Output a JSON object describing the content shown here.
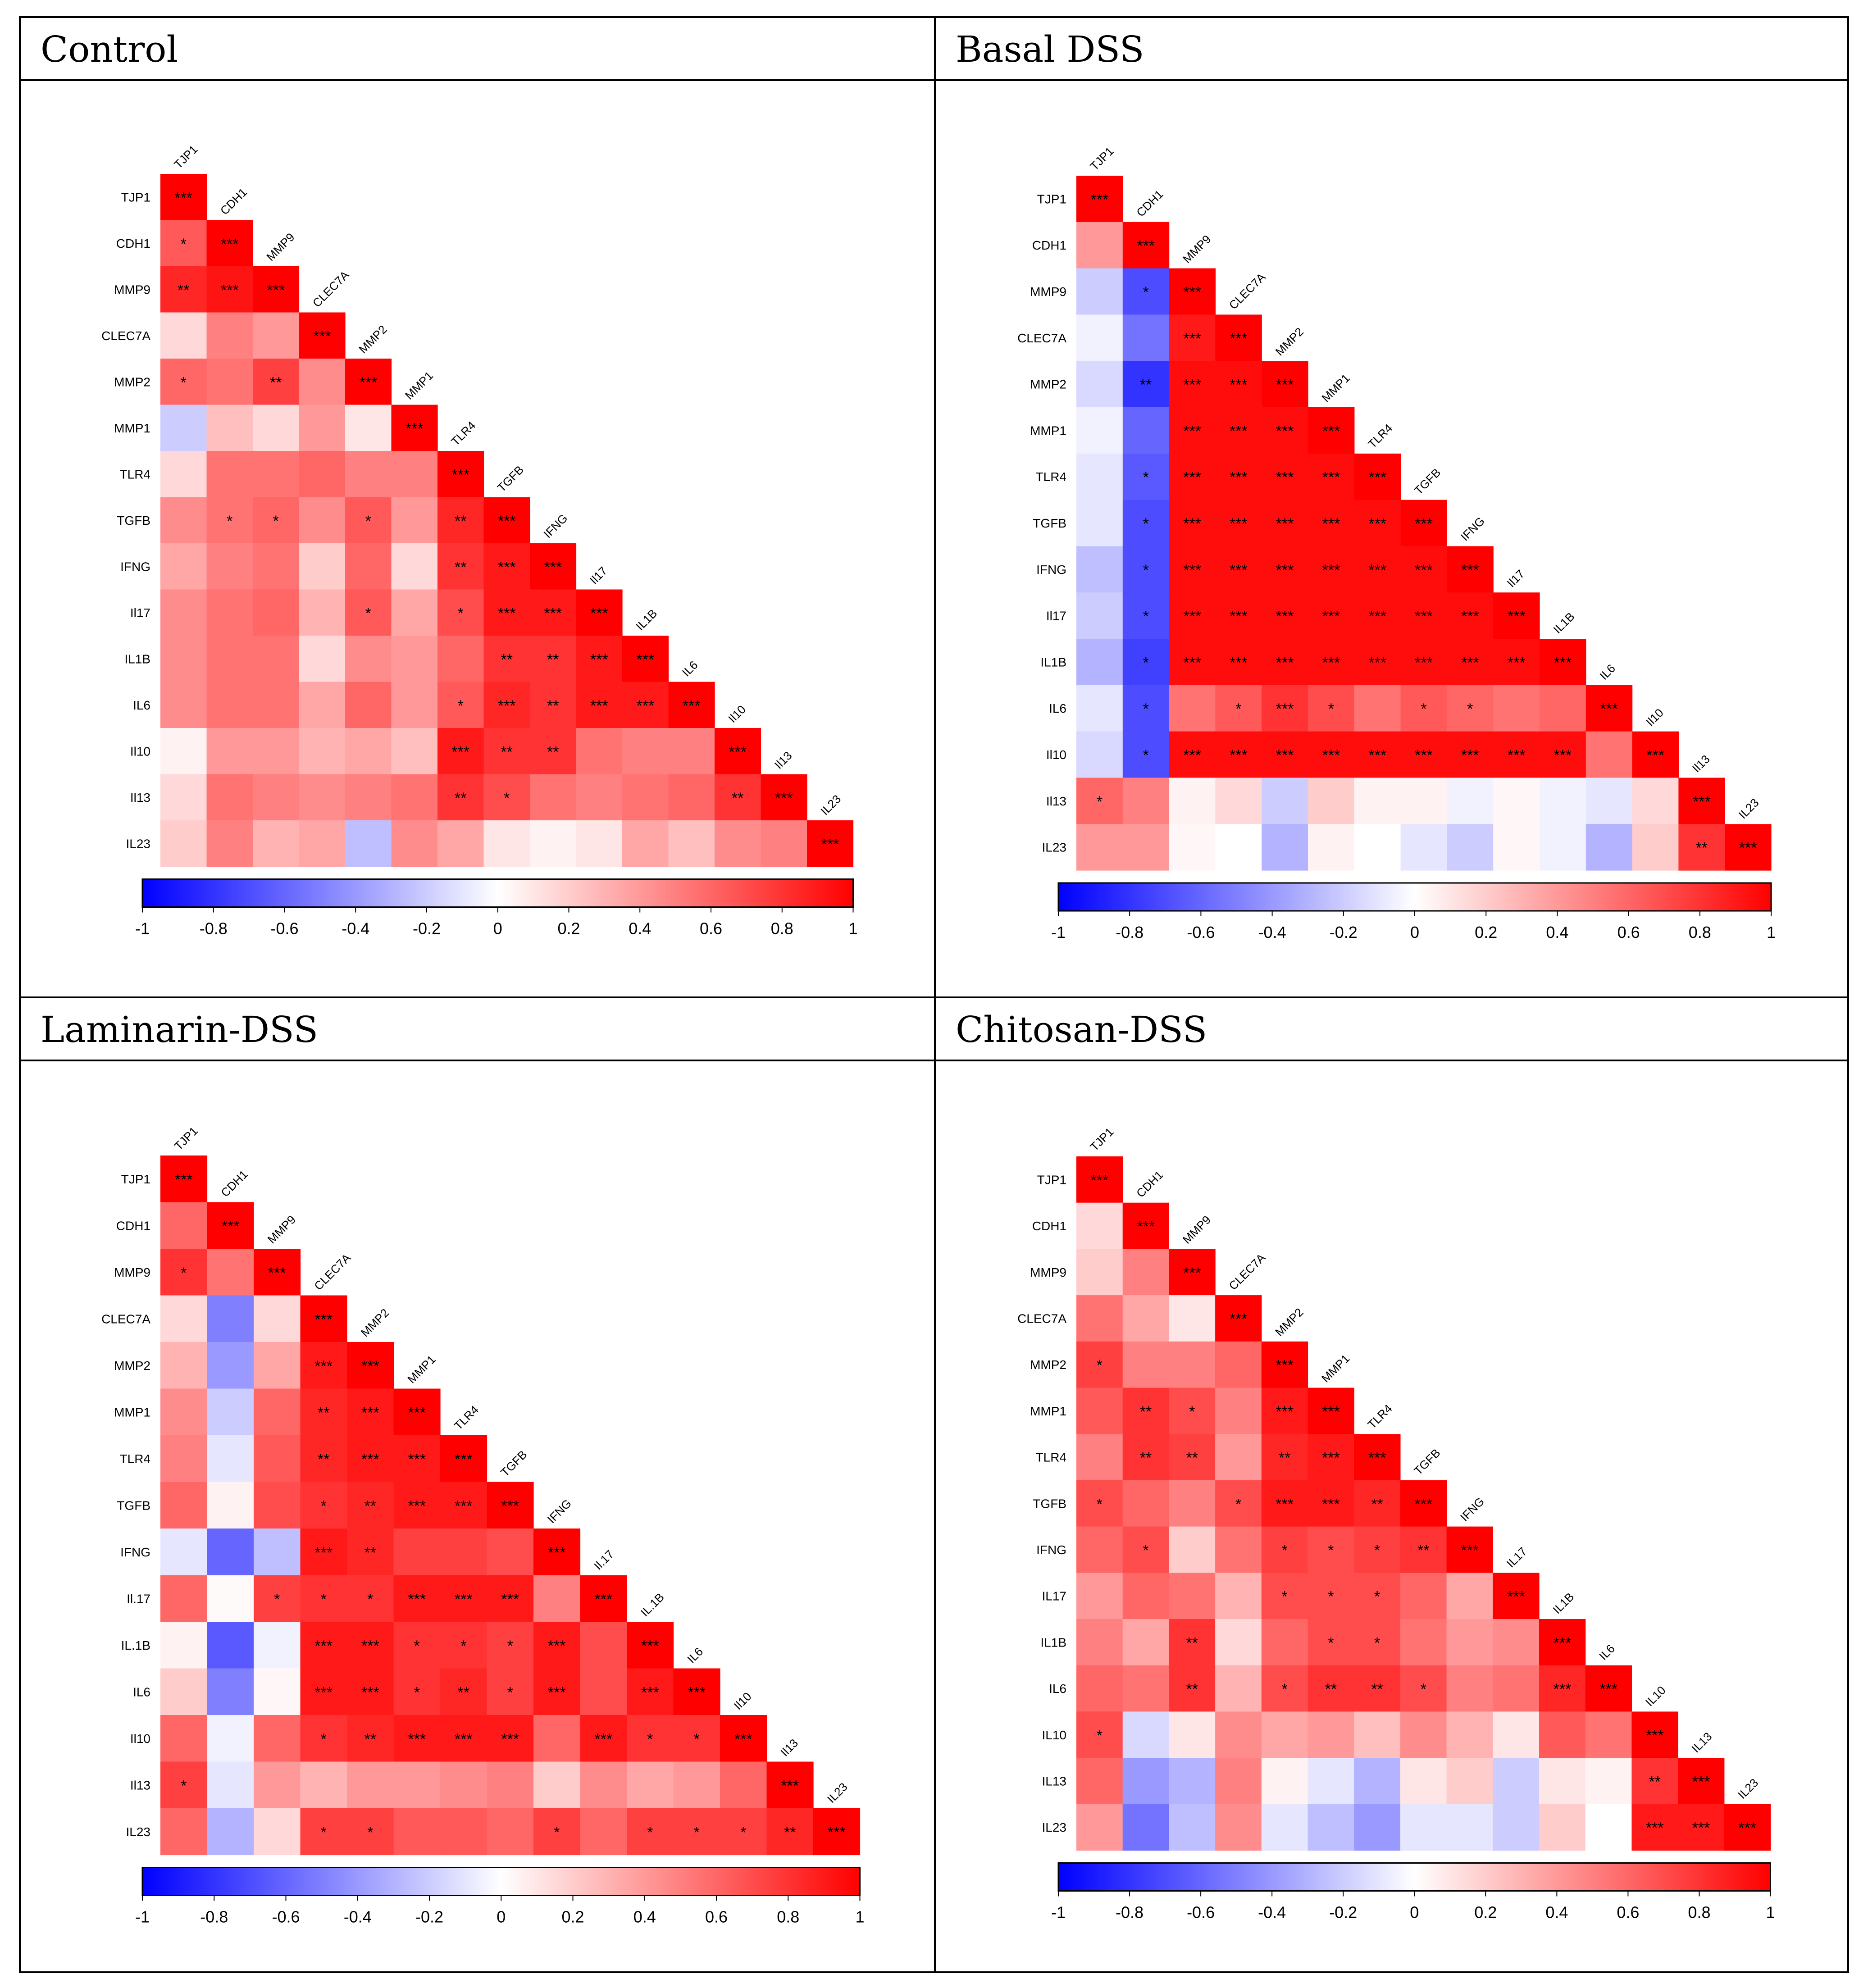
{
  "figure": {
    "panels": [
      {
        "id": "control",
        "title": "Control"
      },
      {
        "id": "basal",
        "title": "Basal DSS"
      },
      {
        "id": "laminarin",
        "title": "Laminarin-DSS"
      },
      {
        "id": "chitosan",
        "title": "Chitosan-DSS"
      }
    ]
  },
  "chart_data": [
    {
      "type": "heatmap",
      "title": "Control",
      "labels": [
        "TJP1",
        "CDH1",
        "MMP9",
        "CLEC7A",
        "MMP2",
        "MMP1",
        "TLR4",
        "TGFB",
        "IFNG",
        "Il17",
        "IL1B",
        "IL6",
        "Il10",
        "Il13",
        "IL23"
      ],
      "colorbar_ticks": [
        "-1",
        "-0.8",
        "-0.6",
        "-0.4",
        "-0.2",
        "0",
        "0.2",
        "0.4",
        "0.6",
        "0.8",
        "1"
      ],
      "vlim": [
        -1,
        1
      ],
      "values": [
        [
          1.0
        ],
        [
          0.65,
          1.0
        ],
        [
          0.85,
          0.92,
          1.0
        ],
        [
          0.15,
          0.5,
          0.4,
          1.0
        ],
        [
          0.6,
          0.55,
          0.75,
          0.45,
          1.0
        ],
        [
          -0.2,
          0.25,
          0.15,
          0.4,
          0.1,
          1.0
        ],
        [
          0.15,
          0.55,
          0.55,
          0.6,
          0.5,
          0.5,
          1.0
        ],
        [
          0.45,
          0.55,
          0.6,
          0.45,
          0.65,
          0.4,
          0.85,
          1.0
        ],
        [
          0.35,
          0.5,
          0.55,
          0.2,
          0.6,
          0.15,
          0.8,
          0.9,
          1.0
        ],
        [
          0.45,
          0.55,
          0.6,
          0.3,
          0.65,
          0.35,
          0.7,
          0.9,
          0.9,
          1.0
        ],
        [
          0.45,
          0.55,
          0.55,
          0.15,
          0.45,
          0.4,
          0.6,
          0.8,
          0.8,
          0.9,
          1.0
        ],
        [
          0.45,
          0.55,
          0.55,
          0.35,
          0.6,
          0.4,
          0.65,
          0.85,
          0.8,
          0.9,
          0.9,
          1.0
        ],
        [
          0.05,
          0.4,
          0.4,
          0.3,
          0.35,
          0.25,
          0.9,
          0.8,
          0.8,
          0.55,
          0.5,
          0.5,
          1.0
        ],
        [
          0.15,
          0.55,
          0.5,
          0.45,
          0.5,
          0.55,
          0.8,
          0.7,
          0.55,
          0.5,
          0.55,
          0.6,
          0.8,
          1.0
        ],
        [
          0.2,
          0.5,
          0.3,
          0.35,
          -0.25,
          0.45,
          0.35,
          0.1,
          0.05,
          0.1,
          0.35,
          0.25,
          0.45,
          0.5,
          1.0
        ]
      ],
      "stars": [
        [
          "***"
        ],
        [
          "*",
          "***"
        ],
        [
          "**",
          "***",
          "***"
        ],
        [
          "",
          "",
          "",
          "***"
        ],
        [
          "*",
          "",
          "**",
          "",
          "***"
        ],
        [
          "",
          "",
          "",
          "",
          "",
          "***"
        ],
        [
          "",
          "",
          "",
          "",
          "",
          "",
          "***"
        ],
        [
          "",
          "*",
          "*",
          "",
          "*",
          "",
          "**",
          "***"
        ],
        [
          "",
          "",
          "",
          "",
          "",
          "",
          "**",
          "***",
          "***"
        ],
        [
          "",
          "",
          "",
          "",
          "*",
          "",
          "*",
          "***",
          "***",
          "***"
        ],
        [
          "",
          "",
          "",
          "",
          "",
          "",
          "",
          "**",
          "**",
          "***",
          "***"
        ],
        [
          "",
          "",
          "",
          "",
          "",
          "",
          "*",
          "***",
          "**",
          "***",
          "***",
          "***"
        ],
        [
          "",
          "",
          "",
          "",
          "",
          "",
          "***",
          "**",
          "**",
          "",
          "",
          "",
          "***"
        ],
        [
          "",
          "",
          "",
          "",
          "",
          "",
          "**",
          "*",
          "",
          "",
          "",
          "",
          "**",
          "***"
        ],
        [
          "",
          "",
          "",
          "",
          "",
          "",
          "",
          "",
          "",
          "",
          "",
          "",
          "",
          "",
          "***"
        ]
      ]
    },
    {
      "type": "heatmap",
      "title": "Basal DSS",
      "labels": [
        "TJP1",
        "CDH1",
        "MMP9",
        "CLEC7A",
        "MMP2",
        "MMP1",
        "TLR4",
        "TGFB",
        "IFNG",
        "Il17",
        "IL1B",
        "IL6",
        "Il10",
        "Il13",
        "IL23"
      ],
      "colorbar_ticks": [
        "-1",
        "-0.8",
        "-0.6",
        "-0.4",
        "-0.2",
        "0",
        "0.2",
        "0.4",
        "0.6",
        "0.8",
        "1"
      ],
      "vlim": [
        -1,
        1
      ],
      "values": [
        [
          1.0
        ],
        [
          0.4,
          1.0
        ],
        [
          -0.2,
          -0.7,
          1.0
        ],
        [
          -0.05,
          -0.55,
          0.9,
          1.0
        ],
        [
          -0.15,
          -0.8,
          0.95,
          0.95,
          1.0
        ],
        [
          -0.05,
          -0.6,
          0.95,
          0.95,
          0.95,
          1.0
        ],
        [
          -0.1,
          -0.65,
          0.95,
          0.95,
          0.95,
          0.95,
          1.0
        ],
        [
          -0.1,
          -0.7,
          0.95,
          0.95,
          0.95,
          0.95,
          0.95,
          1.0
        ],
        [
          -0.25,
          -0.7,
          0.95,
          0.95,
          0.95,
          0.95,
          0.95,
          0.95,
          1.0
        ],
        [
          -0.2,
          -0.7,
          0.95,
          0.95,
          0.95,
          0.95,
          0.95,
          0.95,
          0.95,
          1.0
        ],
        [
          -0.3,
          -0.75,
          0.95,
          0.95,
          0.95,
          0.95,
          0.95,
          0.95,
          0.95,
          0.95,
          1.0
        ],
        [
          -0.1,
          -0.7,
          0.55,
          0.65,
          0.8,
          0.7,
          0.55,
          0.65,
          0.6,
          0.55,
          0.6,
          1.0
        ],
        [
          -0.15,
          -0.7,
          0.95,
          0.95,
          0.95,
          0.95,
          0.95,
          0.95,
          0.95,
          0.95,
          0.95,
          0.55,
          1.0
        ],
        [
          0.6,
          0.5,
          0.05,
          0.15,
          -0.2,
          0.2,
          0.05,
          0.05,
          -0.05,
          0.03,
          -0.05,
          -0.1,
          0.15,
          1.0
        ],
        [
          0.4,
          0.4,
          0.03,
          0.0,
          -0.3,
          0.05,
          0.0,
          -0.1,
          -0.2,
          0.03,
          -0.05,
          -0.3,
          0.2,
          0.8,
          1.0
        ]
      ],
      "stars": [
        [
          "***"
        ],
        [
          "",
          "***"
        ],
        [
          "",
          "*",
          "***"
        ],
        [
          "",
          "",
          "***",
          "***"
        ],
        [
          "",
          "**",
          "***",
          "***",
          "***"
        ],
        [
          "",
          "",
          "***",
          "***",
          "***",
          "***"
        ],
        [
          "",
          "*",
          "***",
          "***",
          "***",
          "***",
          "***"
        ],
        [
          "",
          "*",
          "***",
          "***",
          "***",
          "***",
          "***",
          "***"
        ],
        [
          "",
          "*",
          "***",
          "***",
          "***",
          "***",
          "***",
          "***",
          "***"
        ],
        [
          "",
          "*",
          "***",
          "***",
          "***",
          "***",
          "***",
          "***",
          "***",
          "***"
        ],
        [
          "",
          "*",
          "***",
          "***",
          "***",
          "***",
          "***",
          "***",
          "***",
          "***",
          "***"
        ],
        [
          "",
          "*",
          "",
          "*",
          "***",
          "*",
          "",
          "*",
          "*",
          "",
          "",
          "***"
        ],
        [
          "",
          "*",
          "***",
          "***",
          "***",
          "***",
          "***",
          "***",
          "***",
          "***",
          "***",
          "",
          "***"
        ],
        [
          "*",
          "",
          "",
          "",
          "",
          "",
          "",
          "",
          "",
          "",
          "",
          "",
          "",
          "***"
        ],
        [
          "",
          "",
          "",
          "",
          "",
          "",
          "",
          "",
          "",
          "",
          "",
          "",
          "",
          "**",
          "***"
        ]
      ]
    },
    {
      "type": "heatmap",
      "title": "Laminarin-DSS",
      "labels": [
        "TJP1",
        "CDH1",
        "MMP9",
        "CLEC7A",
        "MMP2",
        "MMP1",
        "TLR4",
        "TGFB",
        "IFNG",
        "Il.17",
        "IL.1B",
        "IL6",
        "Il10",
        "Il13",
        "IL23"
      ],
      "colorbar_ticks": [
        "-1",
        "-0.8",
        "-0.6",
        "-0.4",
        "-0.2",
        "0",
        "0.2",
        "0.4",
        "0.6",
        "0.8",
        "1"
      ],
      "vlim": [
        -1,
        1
      ],
      "values": [
        [
          1.0
        ],
        [
          0.6,
          1.0
        ],
        [
          0.8,
          0.55,
          1.0
        ],
        [
          0.15,
          -0.5,
          0.15,
          1.0
        ],
        [
          0.3,
          -0.4,
          0.35,
          0.9,
          1.0
        ],
        [
          0.45,
          -0.2,
          0.6,
          0.85,
          0.9,
          1.0
        ],
        [
          0.5,
          -0.1,
          0.65,
          0.85,
          0.9,
          0.9,
          1.0
        ],
        [
          0.6,
          0.05,
          0.7,
          0.8,
          0.85,
          0.9,
          0.9,
          1.0
        ],
        [
          -0.1,
          -0.6,
          -0.25,
          0.9,
          0.85,
          0.75,
          0.75,
          0.7,
          1.0
        ],
        [
          0.6,
          0.02,
          0.75,
          0.8,
          0.8,
          0.9,
          0.9,
          0.9,
          0.5,
          1.0
        ],
        [
          0.05,
          -0.65,
          -0.05,
          0.9,
          0.9,
          0.8,
          0.8,
          0.75,
          0.9,
          0.7,
          1.0
        ],
        [
          0.2,
          -0.5,
          0.03,
          0.9,
          0.9,
          0.8,
          0.85,
          0.75,
          0.9,
          0.7,
          0.9,
          1.0
        ],
        [
          0.6,
          -0.05,
          0.6,
          0.8,
          0.85,
          0.9,
          0.9,
          0.9,
          0.6,
          0.9,
          0.8,
          0.8,
          1.0
        ],
        [
          0.75,
          -0.1,
          0.4,
          0.3,
          0.4,
          0.4,
          0.45,
          0.5,
          0.2,
          0.45,
          0.35,
          0.4,
          0.6,
          1.0
        ],
        [
          0.6,
          -0.3,
          0.15,
          0.75,
          0.75,
          0.65,
          0.65,
          0.6,
          0.75,
          0.6,
          0.75,
          0.75,
          0.75,
          0.85,
          1.0
        ]
      ],
      "stars": [
        [
          "***"
        ],
        [
          "",
          "***"
        ],
        [
          "*",
          "",
          "***"
        ],
        [
          "",
          "",
          "",
          "***"
        ],
        [
          "",
          "",
          "",
          "***",
          "***"
        ],
        [
          "",
          "",
          "",
          "**",
          "***",
          "***"
        ],
        [
          "",
          "",
          "",
          "**",
          "***",
          "***",
          "***"
        ],
        [
          "",
          "",
          "",
          "*",
          "**",
          "***",
          "***",
          "***"
        ],
        [
          "",
          "",
          "",
          "***",
          "**",
          "",
          "",
          "",
          "***"
        ],
        [
          "",
          "",
          "*",
          "*",
          "*",
          "***",
          "***",
          "***",
          "",
          "***"
        ],
        [
          "",
          "",
          "",
          "***",
          "***",
          "*",
          "*",
          "*",
          "***",
          "",
          "***"
        ],
        [
          "",
          "",
          "",
          "***",
          "***",
          "*",
          "**",
          "*",
          "***",
          "",
          "***",
          "***"
        ],
        [
          "",
          "",
          "",
          "*",
          "**",
          "***",
          "***",
          "***",
          "",
          "***",
          "*",
          "*",
          "***"
        ],
        [
          "*",
          "",
          "",
          "",
          "",
          "",
          "",
          "",
          "",
          "",
          "",
          "",
          "",
          "***"
        ],
        [
          "",
          "",
          "",
          "*",
          "*",
          "",
          "",
          "",
          "*",
          "",
          "*",
          "*",
          "*",
          "**",
          "***"
        ]
      ]
    },
    {
      "type": "heatmap",
      "title": "Chitosan-DSS",
      "labels": [
        "TJP1",
        "CDH1",
        "MMP9",
        "CLEC7A",
        "MMP2",
        "MMP1",
        "TLR4",
        "TGFB",
        "IFNG",
        "IL17",
        "IL1B",
        "IL6",
        "IL10",
        "IL13",
        "IL23"
      ],
      "colorbar_ticks": [
        "-1",
        "-0.8",
        "-0.6",
        "-0.4",
        "-0.2",
        "0",
        "0.2",
        "0.4",
        "0.6",
        "0.8",
        "1"
      ],
      "vlim": [
        -1,
        1
      ],
      "values": [
        [
          1.0
        ],
        [
          0.15,
          1.0
        ],
        [
          0.2,
          0.5,
          1.0
        ],
        [
          0.55,
          0.35,
          0.1,
          1.0
        ],
        [
          0.75,
          0.5,
          0.5,
          0.6,
          1.0
        ],
        [
          0.65,
          0.8,
          0.7,
          0.5,
          0.9,
          1.0
        ],
        [
          0.5,
          0.8,
          0.75,
          0.4,
          0.85,
          0.9,
          1.0
        ],
        [
          0.7,
          0.6,
          0.5,
          0.7,
          0.9,
          0.9,
          0.85,
          1.0
        ],
        [
          0.6,
          0.7,
          0.2,
          0.55,
          0.75,
          0.7,
          0.75,
          0.8,
          1.0
        ],
        [
          0.4,
          0.6,
          0.55,
          0.3,
          0.7,
          0.7,
          0.7,
          0.6,
          0.35,
          1.0
        ],
        [
          0.5,
          0.35,
          0.8,
          0.15,
          0.6,
          0.7,
          0.7,
          0.55,
          0.4,
          0.45,
          1.0
        ],
        [
          0.6,
          0.55,
          0.8,
          0.3,
          0.7,
          0.8,
          0.8,
          0.7,
          0.5,
          0.55,
          0.85,
          1.0
        ],
        [
          0.7,
          -0.15,
          0.1,
          0.45,
          0.35,
          0.4,
          0.25,
          0.45,
          0.3,
          0.1,
          0.65,
          0.55,
          1.0
        ],
        [
          0.6,
          -0.4,
          -0.3,
          0.5,
          0.05,
          -0.1,
          -0.3,
          0.1,
          0.2,
          -0.2,
          0.1,
          0.05,
          0.8,
          1.0
        ],
        [
          0.4,
          -0.55,
          -0.25,
          0.45,
          -0.1,
          -0.25,
          -0.4,
          -0.1,
          -0.1,
          -0.2,
          0.2,
          0.0,
          0.9,
          0.9,
          1.0
        ]
      ],
      "stars": [
        [
          "***"
        ],
        [
          "",
          "***"
        ],
        [
          "",
          "",
          "***"
        ],
        [
          "",
          "",
          "",
          "***"
        ],
        [
          "*",
          "",
          "",
          "",
          "***"
        ],
        [
          "",
          "**",
          "*",
          "",
          "***",
          "***"
        ],
        [
          "",
          "**",
          "**",
          "",
          "**",
          "***",
          "***"
        ],
        [
          "*",
          "",
          "",
          "*",
          "***",
          "***",
          "**",
          "***"
        ],
        [
          "",
          "*",
          "",
          "",
          "*",
          "*",
          "*",
          "**",
          "***"
        ],
        [
          "",
          "",
          "",
          "",
          "*",
          "*",
          "*",
          "",
          "",
          "***"
        ],
        [
          "",
          "",
          "**",
          "",
          "",
          "*",
          "*",
          "",
          "",
          "",
          "***"
        ],
        [
          "",
          "",
          "**",
          "",
          "*",
          "**",
          "**",
          "*",
          "",
          "",
          "***",
          "***"
        ],
        [
          "*",
          "",
          "",
          "",
          "",
          "",
          "",
          "",
          "",
          "",
          "",
          "",
          "***"
        ],
        [
          "",
          "",
          "",
          "",
          "",
          "",
          "",
          "",
          "",
          "",
          "",
          "",
          "**",
          "***"
        ],
        [
          "",
          "",
          "",
          "",
          "",
          "",
          "",
          "",
          "",
          "",
          "",
          "",
          "***",
          "***",
          "***"
        ]
      ]
    }
  ]
}
